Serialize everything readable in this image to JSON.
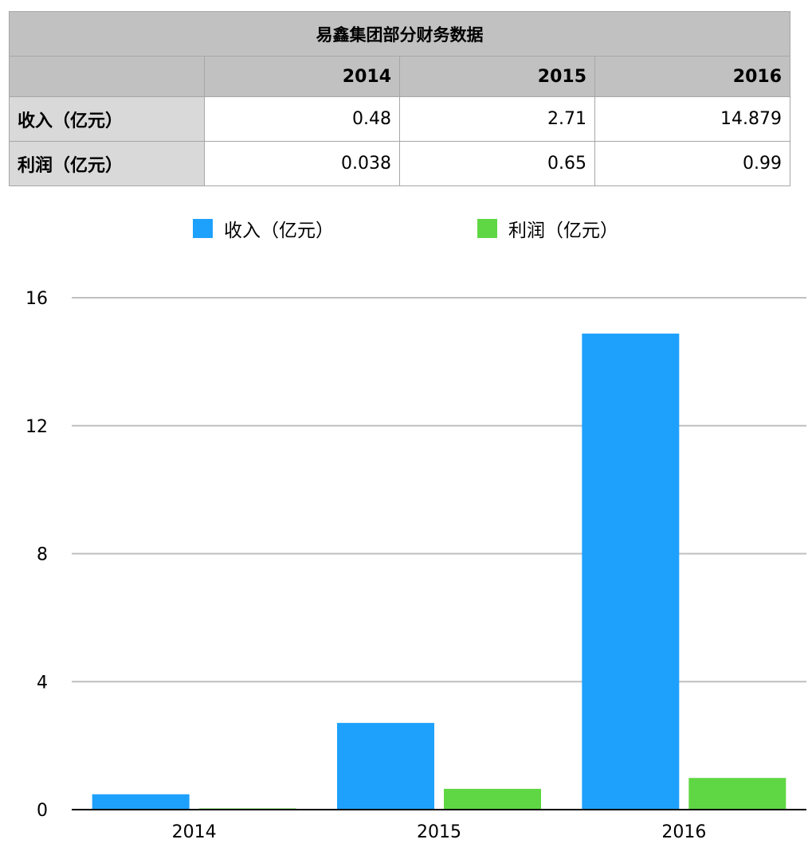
{
  "table": {
    "title": "易鑫集团部分财务数据",
    "years": [
      "2014",
      "2015",
      "2016"
    ],
    "rows": [
      {
        "label": "收入（亿元）",
        "values": [
          "0.48",
          "2.71",
          "14.879"
        ]
      },
      {
        "label": "利润（亿元）",
        "values": [
          "0.038",
          "0.65",
          "0.99"
        ]
      }
    ]
  },
  "chart_data": {
    "type": "bar",
    "title": "",
    "xlabel": "",
    "ylabel": "",
    "categories": [
      "2014",
      "2015",
      "2016"
    ],
    "series": [
      {
        "name": "收入（亿元）",
        "color": "#1ea1fc",
        "values": [
          0.48,
          2.71,
          14.879
        ]
      },
      {
        "name": "利润（亿元）",
        "color": "#5fd744",
        "values": [
          0.038,
          0.65,
          0.99
        ]
      }
    ],
    "ylim": [
      0,
      16
    ],
    "yticks": [
      0,
      4,
      8,
      12,
      16
    ],
    "grid": true,
    "legend_position": "top"
  }
}
